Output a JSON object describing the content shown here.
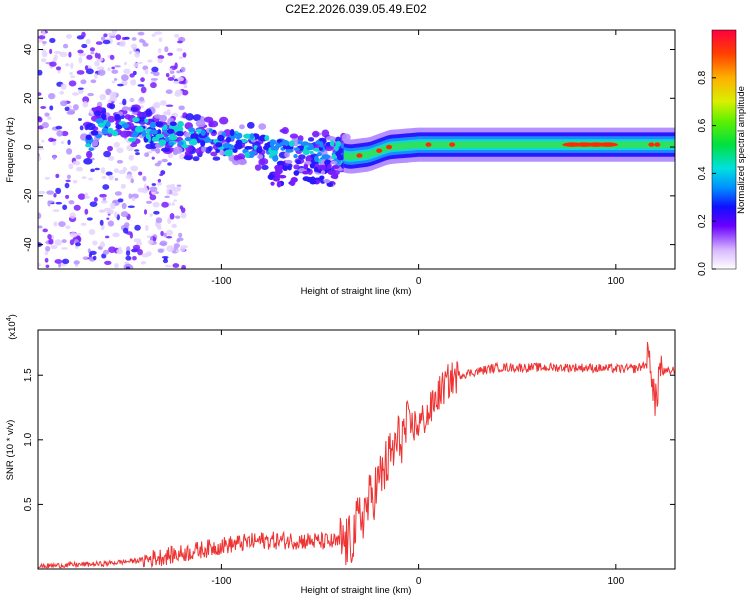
{
  "title": "C2E2.2026.039.05.49.E02",
  "chart_data": [
    {
      "type": "heatmap",
      "name": "spectrogram",
      "xlabel": "Height of straight line (km)",
      "ylabel": "Frequency (Hz)",
      "xlim": [
        -193,
        130
      ],
      "ylim": [
        -50,
        48
      ],
      "xticks": [
        -100,
        0,
        100
      ],
      "yticks": [
        -40,
        -20,
        0,
        20,
        40
      ],
      "colorbar": {
        "label": "Normalized spectral amplitude",
        "range": [
          0,
          1
        ],
        "ticks": [
          "0.0",
          "0.2",
          "0.4",
          "0.6",
          "0.8"
        ],
        "tick_values": [
          0.0,
          0.2,
          0.4,
          0.6,
          0.8
        ]
      },
      "ridge": [
        {
          "x": -165,
          "y": 9
        },
        {
          "x": -140,
          "y": 7
        },
        {
          "x": -120,
          "y": 5
        },
        {
          "x": -100,
          "y": 2
        },
        {
          "x": -80,
          "y": 0
        },
        {
          "x": -60,
          "y": -2
        },
        {
          "x": -45,
          "y": -2
        },
        {
          "x": -35,
          "y": -4
        },
        {
          "x": -25,
          "y": -3
        },
        {
          "x": -15,
          "y": 0
        },
        {
          "x": 0,
          "y": 1
        },
        {
          "x": 40,
          "y": 1
        },
        {
          "x": 90,
          "y": 1
        },
        {
          "x": 130,
          "y": 1
        }
      ]
    },
    {
      "type": "line",
      "name": "snr",
      "xlabel": "Height of straight line (km)",
      "ylabel": "SNR (10 * v/v)",
      "scale_label": "(x10",
      "scale_exp": "4",
      "scale_close": ")",
      "xlim": [
        -193,
        130
      ],
      "ylim": [
        0,
        1.85
      ],
      "xticks": [
        -100,
        0,
        100
      ],
      "yticks": [
        0.5,
        1.0,
        1.5
      ],
      "ytick_labels": [
        "0.5",
        "1.0",
        "1.5"
      ],
      "color": "#ee3333",
      "series": [
        {
          "name": "SNR",
          "x": [
            -193,
            -180,
            -160,
            -140,
            -120,
            -100,
            -80,
            -60,
            -45,
            -35,
            -30,
            -25,
            -20,
            -15,
            -10,
            -5,
            0,
            5,
            10,
            15,
            20,
            30,
            40,
            60,
            80,
            100,
            110,
            118,
            120,
            122,
            125,
            130
          ],
          "y": [
            0.02,
            0.03,
            0.04,
            0.07,
            0.12,
            0.18,
            0.22,
            0.22,
            0.21,
            0.2,
            0.38,
            0.52,
            0.68,
            0.85,
            1.0,
            1.1,
            1.12,
            1.2,
            1.35,
            1.45,
            1.5,
            1.53,
            1.56,
            1.56,
            1.56,
            1.55,
            1.55,
            1.6,
            1.22,
            1.55,
            1.52,
            1.54
          ]
        }
      ]
    }
  ]
}
